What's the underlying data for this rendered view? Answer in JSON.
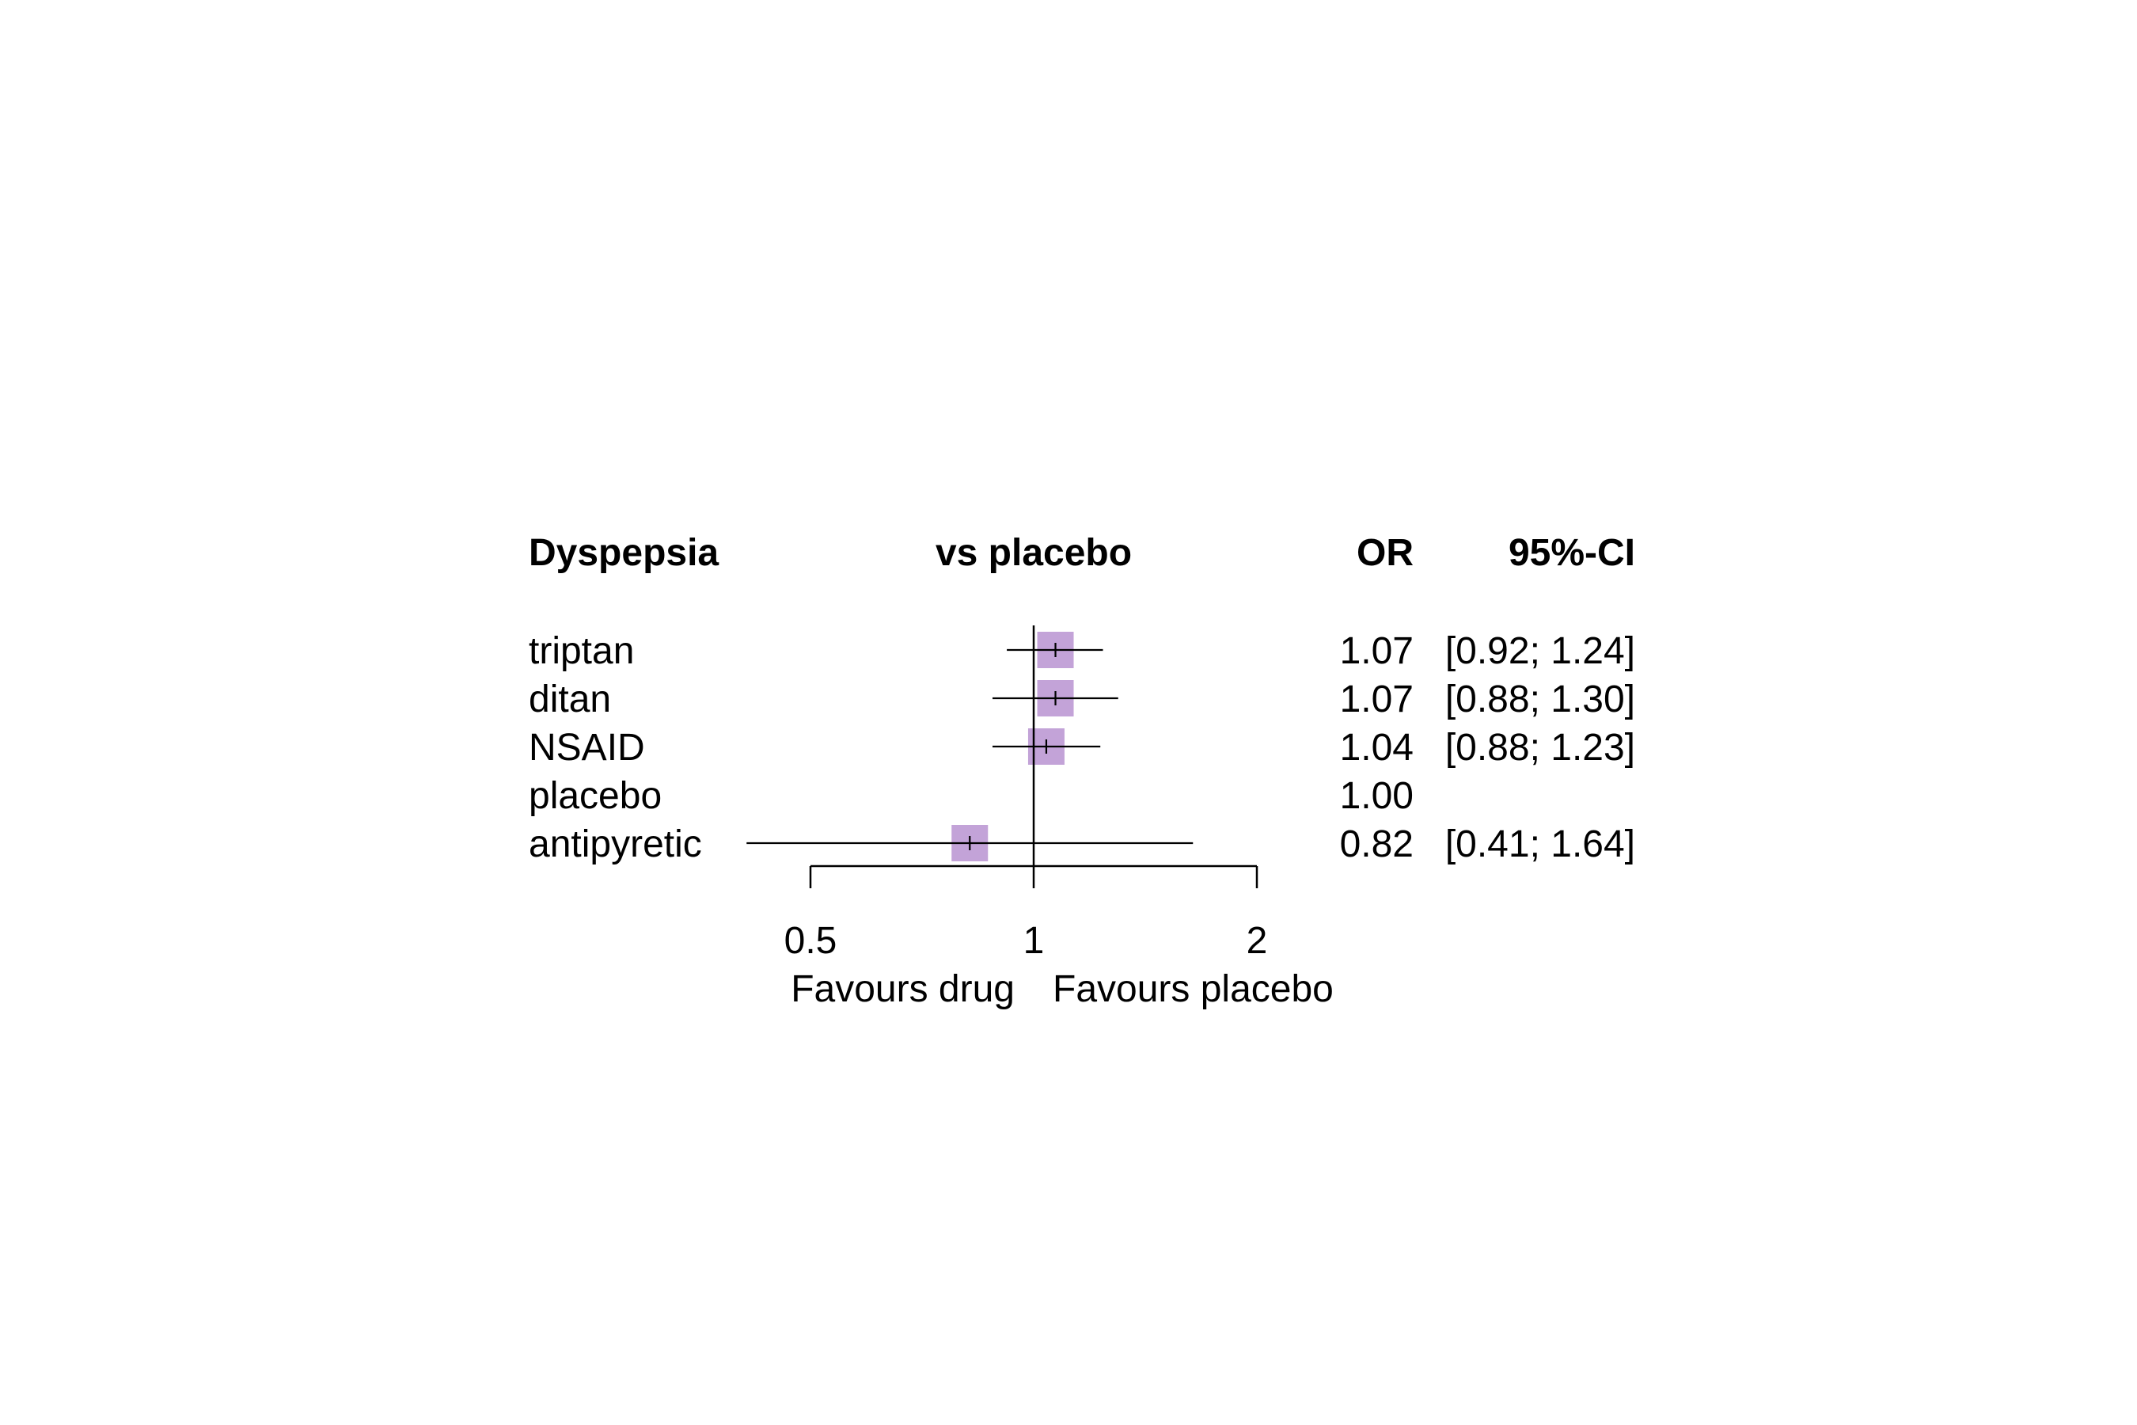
{
  "chart_data": {
    "type": "forest",
    "headers": {
      "study": "Dyspepsia",
      "plot": "vs placebo",
      "estimate": "OR",
      "ci": "95%-CI"
    },
    "rows": [
      {
        "label": "triptan",
        "or": 1.07,
        "lower": 0.92,
        "upper": 1.24,
        "or_text": "1.07",
        "ci_text": "[0.92; 1.24]"
      },
      {
        "label": "ditan",
        "or": 1.07,
        "lower": 0.88,
        "upper": 1.3,
        "or_text": "1.07",
        "ci_text": "[0.88; 1.30]"
      },
      {
        "label": "NSAID",
        "or": 1.04,
        "lower": 0.88,
        "upper": 1.23,
        "or_text": "1.04",
        "ci_text": "[0.88; 1.23]"
      },
      {
        "label": "placebo",
        "or": 1.0,
        "lower": null,
        "upper": null,
        "or_text": "1.00",
        "ci_text": ""
      },
      {
        "label": "antipyretic",
        "or": 0.82,
        "lower": 0.41,
        "upper": 1.64,
        "or_text": "0.82",
        "ci_text": "[0.41; 1.64]"
      }
    ],
    "x_scale": "log",
    "xlim": [
      0.5,
      2
    ],
    "x_ticks": [
      {
        "value": 0.5,
        "label": "0.5"
      },
      {
        "value": 1,
        "label": "1"
      },
      {
        "value": 2,
        "label": "2"
      }
    ],
    "reference_line": 1,
    "favours_left": "Favours drug",
    "favours_right": "Favours placebo",
    "square_color": "#c3a3d8",
    "line_color": "#000000"
  }
}
